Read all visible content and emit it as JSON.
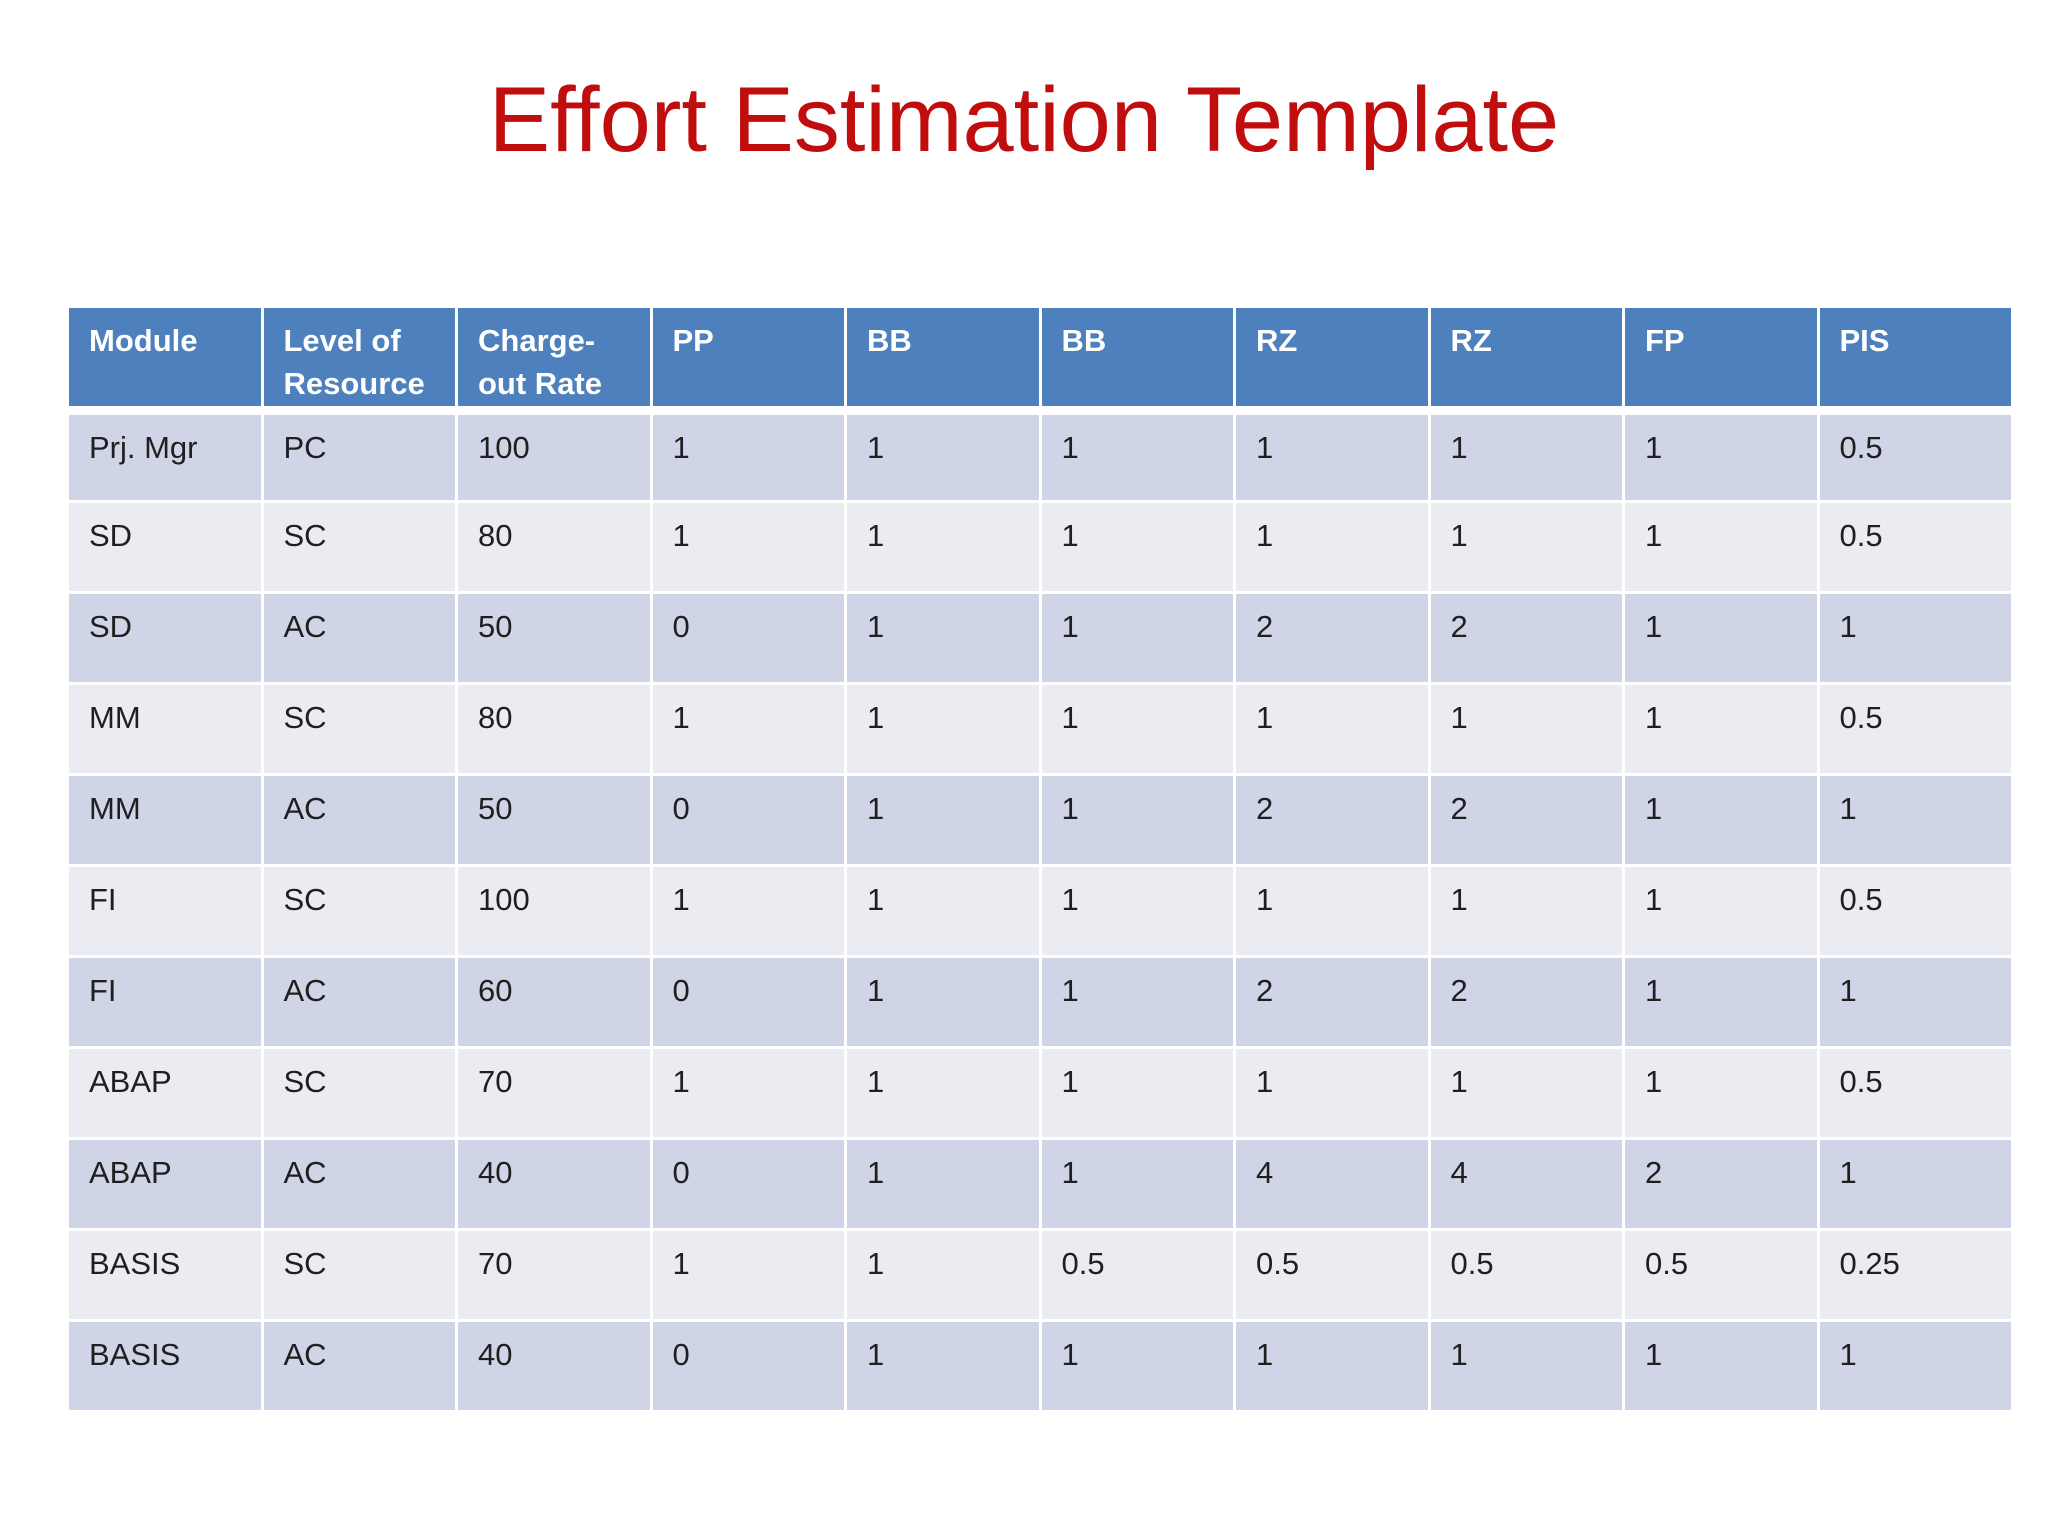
{
  "title": "Effort Estimation Template",
  "colors": {
    "title": "#C00D0D",
    "header_bg": "#4D80BC",
    "row_dark": "#CFD5E6",
    "row_light": "#EAECF2",
    "header_text": "#FFFFFF",
    "cell_text": "#1F1F1F"
  },
  "table": {
    "columns": [
      "Module",
      "Level of\nResource",
      "Charge-\nout Rate",
      "PP",
      "BB",
      "BB",
      "RZ",
      "RZ",
      "FP",
      "PIS"
    ],
    "rows": [
      [
        "Prj. Mgr",
        "PC",
        "100",
        "1",
        "1",
        "1",
        "1",
        "1",
        "1",
        "0.5"
      ],
      [
        "SD",
        "SC",
        "80",
        "1",
        "1",
        "1",
        "1",
        "1",
        "1",
        "0.5"
      ],
      [
        "SD",
        "AC",
        "50",
        "0",
        "1",
        "1",
        "2",
        "2",
        "1",
        "1"
      ],
      [
        "MM",
        "SC",
        "80",
        "1",
        "1",
        "1",
        "1",
        "1",
        "1",
        "0.5"
      ],
      [
        "MM",
        "AC",
        "50",
        "0",
        "1",
        "1",
        "2",
        "2",
        "1",
        "1"
      ],
      [
        "FI",
        "SC",
        "100",
        "1",
        "1",
        "1",
        "1",
        "1",
        "1",
        "0.5"
      ],
      [
        "FI",
        "AC",
        "60",
        "0",
        "1",
        "1",
        "2",
        "2",
        "1",
        "1"
      ],
      [
        "ABAP",
        "SC",
        "70",
        "1",
        "1",
        "1",
        "1",
        "1",
        "1",
        "0.5"
      ],
      [
        "ABAP",
        "AC",
        "40",
        "0",
        "1",
        "1",
        "4",
        "4",
        "2",
        "1"
      ],
      [
        "BASIS",
        "SC",
        "70",
        "1",
        "1",
        "0.5",
        "0.5",
        "0.5",
        "0.5",
        "0.25"
      ],
      [
        "BASIS",
        "AC",
        "40",
        "0",
        "1",
        "1",
        "1",
        "1",
        "1",
        "1"
      ]
    ]
  }
}
